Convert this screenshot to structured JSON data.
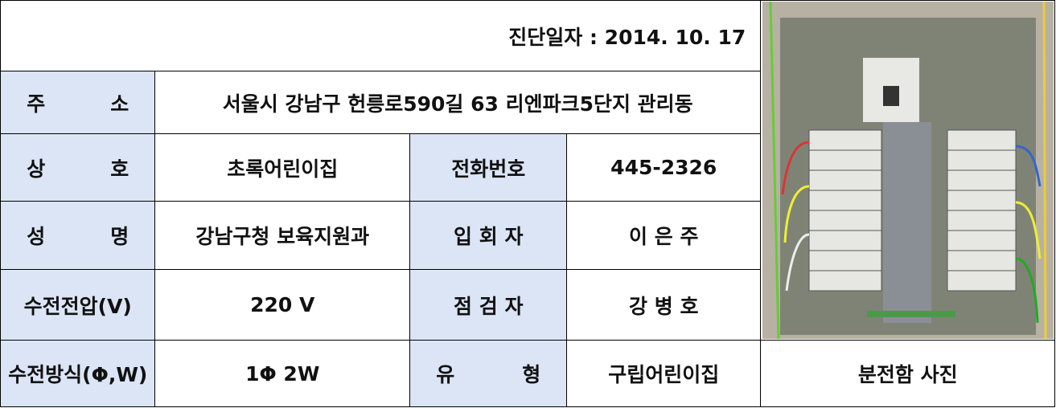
{
  "header": {
    "date_label": "진단일자 : 2014. 10. 17"
  },
  "table": {
    "rows": [
      [
        "주 소",
        "서울시 강남구 헌릉로590길 63 리엔파크5단지 관리동"
      ],
      [
        "상 호",
        "초록어린이집",
        "전화번호",
        "445-2326"
      ],
      [
        "성 명",
        "강남구청 보육지원과",
        "입 회 자",
        "이 은 주"
      ],
      [
        "수전전압(V)",
        "220 V",
        "점 검 자",
        "강 병 호"
      ],
      [
        "수전방식(Φ,W)",
        "1Φ 2W",
        "유 형",
        "구립어린이집"
      ]
    ]
  },
  "photo": {
    "caption": "분전함 사진"
  }
}
